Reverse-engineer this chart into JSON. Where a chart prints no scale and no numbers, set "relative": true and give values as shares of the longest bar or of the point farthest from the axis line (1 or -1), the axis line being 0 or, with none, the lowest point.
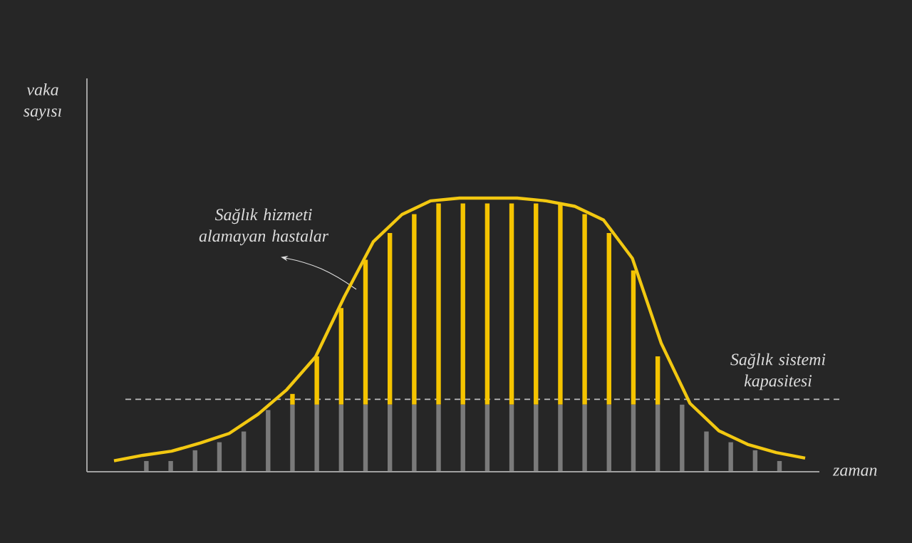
{
  "chart_data": [
    {
      "type": "bar",
      "stacked": true,
      "relative": true,
      "xlabel": "zaman",
      "ylabel": "vaka sayısı",
      "categories": [
        null,
        null,
        null,
        null,
        null,
        null,
        null,
        null,
        null,
        null,
        null,
        null,
        null,
        null,
        null,
        null,
        null,
        null,
        null,
        null,
        null,
        null,
        null,
        null,
        null,
        null,
        null
      ],
      "series": [
        {
          "color": "#7a7a7a",
          "values": [
            0.04,
            0.04,
            0.08,
            0.11,
            0.15,
            0.23,
            0.25,
            0.25,
            0.25,
            0.25,
            0.25,
            0.25,
            0.25,
            0.25,
            0.25,
            0.25,
            0.25,
            0.25,
            0.25,
            0.25,
            0.25,
            0.25,
            0.25,
            0.15,
            0.11,
            0.08,
            0.04
          ]
        },
        {
          "color": "#f5c400",
          "values": [
            0,
            0,
            0,
            0,
            0,
            0,
            0.04,
            0.18,
            0.36,
            0.54,
            0.64,
            0.71,
            0.75,
            0.75,
            0.75,
            0.75,
            0.75,
            0.75,
            0.71,
            0.64,
            0.5,
            0.18,
            0,
            0,
            0,
            0,
            0
          ]
        }
      ],
      "ref_lines": [
        {
          "axis": "y",
          "value": 0.27,
          "label": "Sağlık sistemi kapasitesi",
          "color": "#bdbdbd",
          "line_style": "dashed"
        }
      ],
      "annotations": [
        "Sağlık hizmeti alamayan hastalar"
      ]
    },
    {
      "type": "line",
      "relative": true,
      "categories": [
        null,
        null,
        null,
        null,
        null,
        null,
        null,
        null,
        null,
        null,
        null,
        null,
        null,
        null,
        null,
        null,
        null,
        null,
        null,
        null,
        null,
        null,
        null,
        null,
        null
      ],
      "series": [
        {
          "color": "#f2c811",
          "values": [
            0.04,
            0.06,
            0.075,
            0.105,
            0.14,
            0.21,
            0.3,
            0.42,
            0.64,
            0.84,
            0.94,
            0.99,
            1.0,
            1.0,
            1.0,
            0.99,
            0.97,
            0.92,
            0.78,
            0.47,
            0.25,
            0.15,
            0.1,
            0.07,
            0.05
          ]
        }
      ]
    }
  ]
}
